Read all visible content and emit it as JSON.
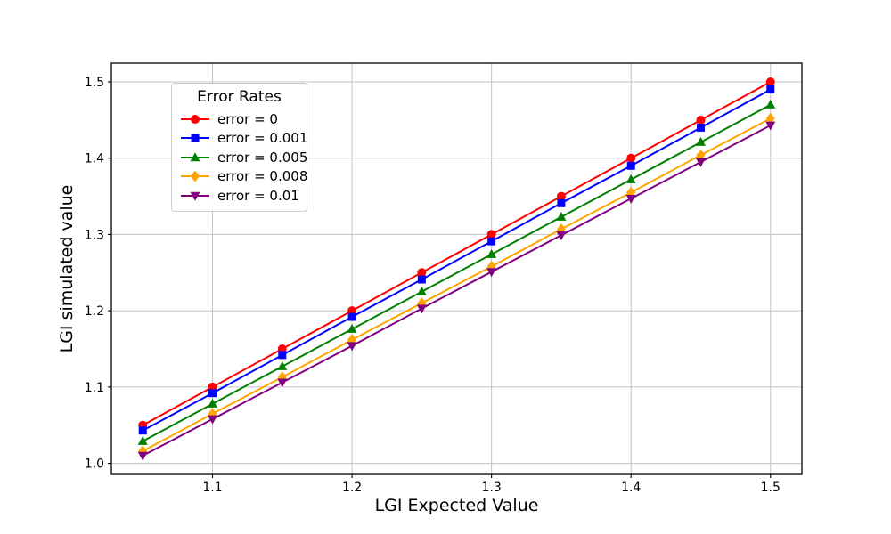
{
  "figure": {
    "background": "#ffffff",
    "text_color": "#000000"
  },
  "chart_data": {
    "type": "line",
    "title": "",
    "xlabel": "LGI Expected Value",
    "ylabel": "LGI simulated value",
    "x": [
      1.05,
      1.1,
      1.15,
      1.2,
      1.25,
      1.3,
      1.35,
      1.4,
      1.45,
      1.5
    ],
    "series": [
      {
        "name": "error = 0",
        "color": "#ff0000",
        "marker": "circle",
        "values": [
          1.05,
          1.1,
          1.15,
          1.2,
          1.25,
          1.3,
          1.35,
          1.4,
          1.45,
          1.5
        ]
      },
      {
        "name": "error = 0.001",
        "color": "#0000ff",
        "marker": "square",
        "values": [
          1.043,
          1.092,
          1.142,
          1.192,
          1.241,
          1.291,
          1.341,
          1.39,
          1.44,
          1.49
        ]
      },
      {
        "name": "error = 0.005",
        "color": "#008000",
        "marker": "triangle-up",
        "values": [
          1.029,
          1.078,
          1.127,
          1.176,
          1.225,
          1.274,
          1.323,
          1.372,
          1.421,
          1.47
        ]
      },
      {
        "name": "error = 0.008",
        "color": "#ffa500",
        "marker": "diamond",
        "values": [
          1.016,
          1.065,
          1.113,
          1.162,
          1.21,
          1.258,
          1.307,
          1.355,
          1.404,
          1.452
        ]
      },
      {
        "name": "error = 0.01",
        "color": "#800080",
        "marker": "triangle-down",
        "values": [
          1.01,
          1.058,
          1.106,
          1.154,
          1.203,
          1.251,
          1.299,
          1.347,
          1.395,
          1.443
        ]
      }
    ],
    "legend": {
      "title": "Error Rates",
      "position": "upper-left"
    },
    "axes": {
      "xticks": [
        1.1,
        1.2,
        1.3,
        1.4,
        1.5
      ],
      "xtick_labels": [
        "1.1",
        "1.2",
        "1.3",
        "1.4",
        "1.5"
      ],
      "yticks": [
        1.0,
        1.1,
        1.2,
        1.3,
        1.4,
        1.5
      ],
      "ytick_labels": [
        "1.0",
        "1.1",
        "1.2",
        "1.3",
        "1.4",
        "1.5"
      ],
      "xlim": [
        1.0275,
        1.5225
      ],
      "ylim": [
        0.9855,
        1.5245
      ],
      "grid": true,
      "grid_color": "#c3c3c3",
      "spine_color": "#000000",
      "tick_color": "#000000"
    }
  }
}
